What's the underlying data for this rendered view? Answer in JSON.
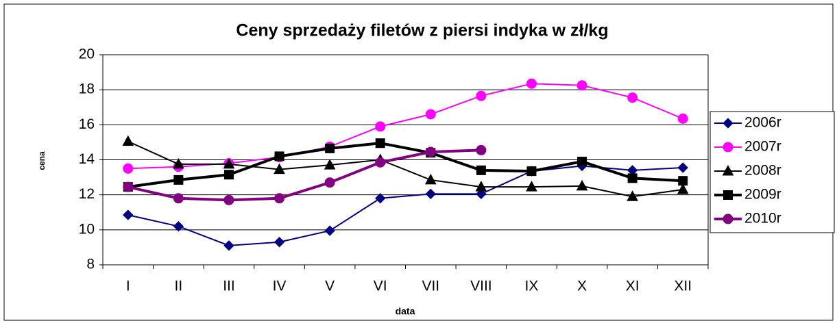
{
  "chart_data": {
    "type": "line",
    "title": "Ceny sprzedaży filetów z  piersi indyka w zł/kg",
    "x_label": "data",
    "y_label": "cena",
    "categories": [
      "I",
      "II",
      "III",
      "IV",
      "V",
      "VI",
      "VII",
      "VIII",
      "IX",
      "X",
      "XI",
      "XII"
    ],
    "series": [
      {
        "name": "2006r",
        "color": "#000080",
        "marker": "diamond",
        "line_width": 2,
        "values": [
          10.85,
          10.2,
          9.1,
          9.3,
          9.95,
          11.8,
          12.05,
          12.05,
          13.35,
          13.65,
          13.4,
          13.55
        ]
      },
      {
        "name": "2007r",
        "color": "#ff00ff",
        "marker": "circle",
        "line_width": 2,
        "values": [
          13.5,
          13.6,
          13.8,
          14.15,
          14.75,
          15.9,
          16.6,
          17.65,
          18.35,
          18.25,
          17.55,
          16.35
        ]
      },
      {
        "name": "2008r",
        "color": "#000000",
        "marker": "triangle",
        "line_width": 2,
        "values": [
          15.05,
          13.75,
          13.75,
          13.45,
          13.7,
          14.0,
          12.85,
          12.45,
          12.45,
          12.5,
          11.9,
          12.3
        ]
      },
      {
        "name": "2009r",
        "color": "#000000",
        "marker": "square",
        "line_width": 4,
        "values": [
          12.45,
          12.85,
          13.15,
          14.2,
          14.65,
          14.95,
          14.4,
          13.4,
          13.35,
          13.9,
          12.95,
          12.8
        ]
      },
      {
        "name": "2010r",
        "color": "#800080",
        "marker": "circle",
        "line_width": 4,
        "values": [
          12.45,
          11.8,
          11.7,
          11.8,
          12.7,
          13.85,
          14.45,
          14.55,
          null,
          null,
          null,
          null
        ]
      }
    ],
    "ylim": [
      8,
      20
    ],
    "yticks": [
      8,
      10,
      12,
      14,
      16,
      18,
      20
    ],
    "grid": true,
    "legend": "right"
  }
}
